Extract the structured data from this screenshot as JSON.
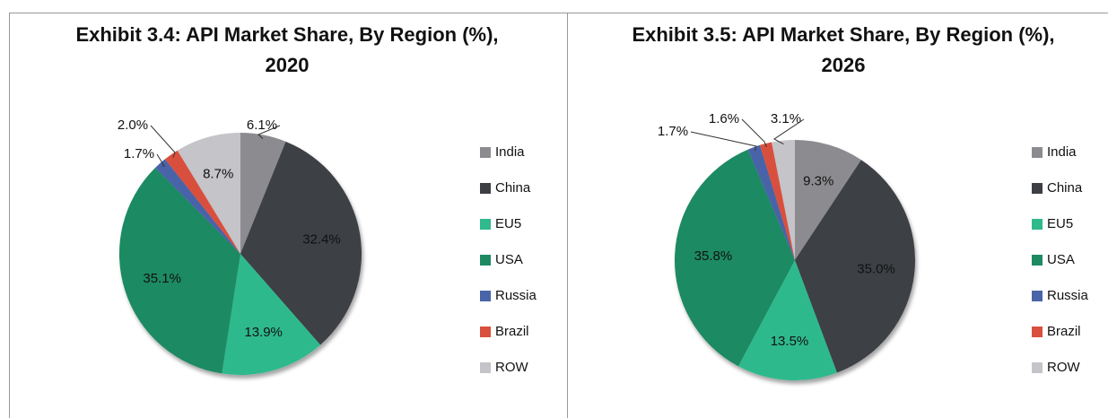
{
  "chart_data": [
    {
      "type": "pie",
      "title": "Exhibit 3.4: API Market Share, By Region (%), 2020",
      "categories": [
        "India",
        "China",
        "EU5",
        "USA",
        "Russia",
        "Brazil",
        "ROW"
      ],
      "values": [
        6.1,
        32.4,
        13.9,
        35.1,
        1.7,
        2.0,
        8.7
      ],
      "value_labels": [
        "6.1%",
        "32.4%",
        "13.9%",
        "35.1%",
        "1.7%",
        "2.0%",
        "8.7%"
      ],
      "colors": [
        "#8c8c90",
        "#3d3f45",
        "#2fb98d",
        "#1e8a62",
        "#4a64a8",
        "#d9503e",
        "#c4c4c9"
      ]
    },
    {
      "type": "pie",
      "title": "Exhibit 3.5: API Market Share, By Region (%), 2026",
      "categories": [
        "India",
        "China",
        "EU5",
        "USA",
        "Russia",
        "Brazil",
        "ROW"
      ],
      "values": [
        9.3,
        35.0,
        13.5,
        35.8,
        1.7,
        1.6,
        3.1
      ],
      "value_labels": [
        "9.3%",
        "35.0%",
        "13.5%",
        "35.8%",
        "1.7%",
        "1.6%",
        "3.1%"
      ],
      "colors": [
        "#8c8c90",
        "#3d3f45",
        "#2fb98d",
        "#1e8a62",
        "#4a64a8",
        "#d9503e",
        "#c4c4c9"
      ]
    }
  ]
}
